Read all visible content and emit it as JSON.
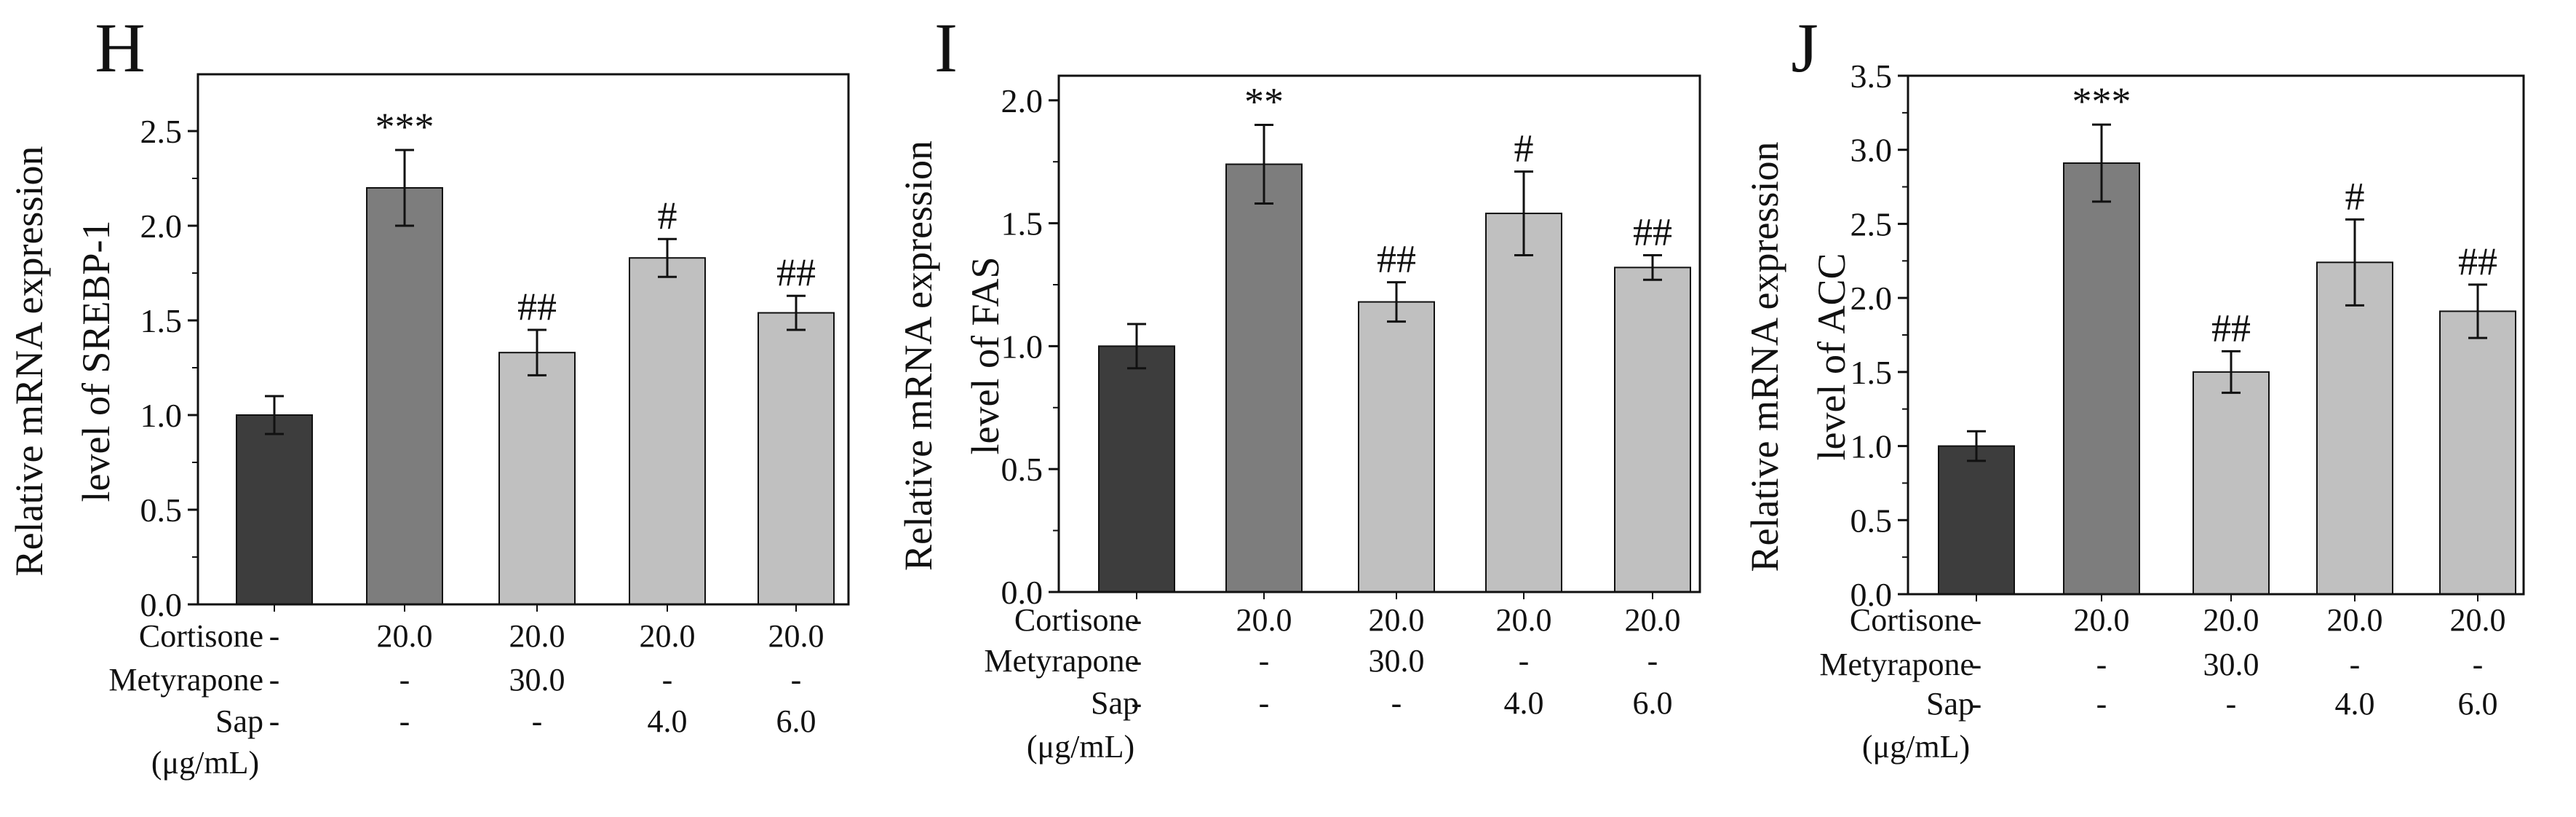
{
  "colors": {
    "control": "#3d3d3d",
    "model": "#7d7d7d",
    "treated": "#c0c0c0",
    "axis": "#111111"
  },
  "row_labels": {
    "cortisone": "Cortisone",
    "metyrapone": "Metyrapone",
    "sap": "Sap",
    "sap_unit": "(μg/mL)"
  },
  "groups": [
    {
      "cortisone": "-",
      "metyrapone": "-",
      "sap": "-"
    },
    {
      "cortisone": "20.0",
      "metyrapone": "-",
      "sap": "-"
    },
    {
      "cortisone": "20.0",
      "metyrapone": "30.0",
      "sap": "-"
    },
    {
      "cortisone": "20.0",
      "metyrapone": "-",
      "sap": "4.0"
    },
    {
      "cortisone": "20.0",
      "metyrapone": "-",
      "sap": "6.0"
    }
  ],
  "chart_data": [
    {
      "type": "bar",
      "panel": "H",
      "ylabel_line1": "Relative mRNA expression",
      "ylabel_line2": "level of SREBP-1",
      "ylim": [
        0,
        2.8
      ],
      "yticks": [
        0.0,
        0.5,
        1.0,
        1.5,
        2.0,
        2.5
      ],
      "values": [
        1.0,
        2.2,
        1.33,
        1.83,
        1.54
      ],
      "errors": [
        0.1,
        0.2,
        0.12,
        0.1,
        0.09
      ],
      "annotations": [
        "",
        "***",
        "##",
        "#",
        "##"
      ]
    },
    {
      "type": "bar",
      "panel": "I",
      "ylabel_line1": "Relative mRNA expression",
      "ylabel_line2": "level of FAS",
      "ylim": [
        0,
        2.1
      ],
      "yticks": [
        0.0,
        0.5,
        1.0,
        1.5,
        2.0
      ],
      "values": [
        1.0,
        1.74,
        1.18,
        1.54,
        1.32
      ],
      "errors": [
        0.09,
        0.16,
        0.08,
        0.17,
        0.05
      ],
      "annotations": [
        "",
        "**",
        "##",
        "#",
        "##"
      ]
    },
    {
      "type": "bar",
      "panel": "J",
      "ylabel_line1": "Relative mRNA expression",
      "ylabel_line2": "level of ACC",
      "ylim": [
        0,
        3.5
      ],
      "yticks": [
        0.0,
        0.5,
        1.0,
        1.5,
        2.0,
        2.5,
        3.0,
        3.5
      ],
      "values": [
        1.0,
        2.91,
        1.5,
        2.24,
        1.91
      ],
      "errors": [
        0.1,
        0.26,
        0.14,
        0.29,
        0.18
      ],
      "annotations": [
        "",
        "***",
        "##",
        "#",
        "##"
      ]
    }
  ]
}
